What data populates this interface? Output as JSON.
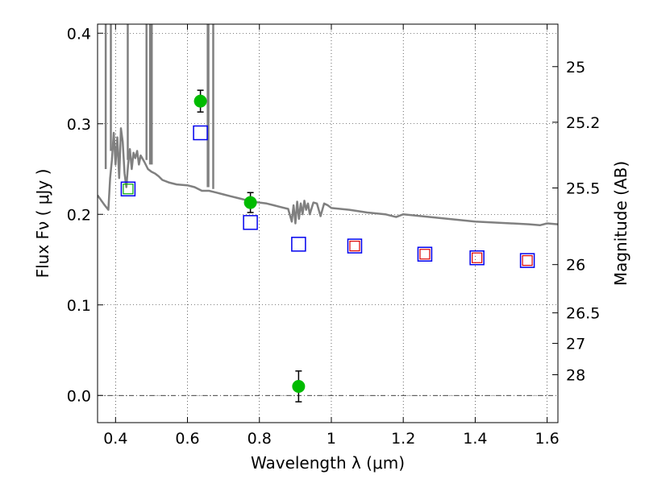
{
  "chart_data": {
    "type": "scatter",
    "xlabel": "Wavelength  λ (μm)",
    "ylabel": "Flux  Fν  ( μJy )",
    "ylabel_right": "Magnitude (AB)",
    "xlim": [
      0.35,
      1.63
    ],
    "ylim": [
      -0.03,
      0.41
    ],
    "grid": true,
    "x_ticks": [
      {
        "value": 0.4,
        "label": "0.4"
      },
      {
        "value": 0.6,
        "label": "0.6"
      },
      {
        "value": 0.8,
        "label": "0.8"
      },
      {
        "value": 1.0,
        "label": "1"
      },
      {
        "value": 1.2,
        "label": "1.2"
      },
      {
        "value": 1.4,
        "label": "1.4"
      },
      {
        "value": 1.6,
        "label": "1.6"
      }
    ],
    "y_ticks": [
      {
        "value": 0.0,
        "label": "0.0"
      },
      {
        "value": 0.1,
        "label": "0.1"
      },
      {
        "value": 0.2,
        "label": "0.2"
      },
      {
        "value": 0.3,
        "label": "0.3"
      },
      {
        "value": 0.4,
        "label": "0.4"
      }
    ],
    "right_ticks": [
      {
        "flux": 0.3631,
        "label": "25"
      },
      {
        "flux": 0.3017,
        "label": "25.2"
      },
      {
        "flux": 0.2291,
        "label": "25.5"
      },
      {
        "flux": 0.1445,
        "label": "26"
      },
      {
        "flux": 0.0912,
        "label": "26.5"
      },
      {
        "flux": 0.0575,
        "label": "27"
      },
      {
        "flux": 0.0229,
        "label": "28"
      }
    ],
    "series": [
      {
        "kind": "errorbar-points",
        "color": "#00bb00",
        "points": [
          {
            "x": 0.636,
            "y": 0.325,
            "err": 0.012
          },
          {
            "x": 0.775,
            "y": 0.213,
            "err": 0.011
          },
          {
            "x": 0.909,
            "y": 0.01,
            "err": 0.017
          }
        ]
      },
      {
        "kind": "open-squares",
        "color": "#0000ee",
        "points": [
          {
            "x": 0.435,
            "y": 0.228
          },
          {
            "x": 0.636,
            "y": 0.29
          },
          {
            "x": 0.775,
            "y": 0.191
          },
          {
            "x": 0.909,
            "y": 0.167
          },
          {
            "x": 1.065,
            "y": 0.165
          },
          {
            "x": 1.26,
            "y": 0.156
          },
          {
            "x": 1.405,
            "y": 0.152
          },
          {
            "x": 1.545,
            "y": 0.149
          }
        ]
      },
      {
        "kind": "open-squares-small",
        "color": "#dd0000",
        "points": [
          {
            "x": 1.065,
            "y": 0.165
          },
          {
            "x": 1.26,
            "y": 0.156
          },
          {
            "x": 1.405,
            "y": 0.152
          },
          {
            "x": 1.545,
            "y": 0.149
          }
        ]
      },
      {
        "kind": "open-squares-small",
        "color": "#00aa00",
        "points": [
          {
            "x": 0.435,
            "y": 0.228
          }
        ]
      },
      {
        "kind": "spectrum",
        "color": "#808080",
        "x": [
          0.35,
          0.37,
          0.38,
          0.385,
          0.39,
          0.395,
          0.4,
          0.405,
          0.41,
          0.415,
          0.42,
          0.425,
          0.43,
          0.435,
          0.44,
          0.445,
          0.45,
          0.455,
          0.46,
          0.465,
          0.47,
          0.48,
          0.49,
          0.5,
          0.51,
          0.52,
          0.53,
          0.55,
          0.57,
          0.6,
          0.62,
          0.64,
          0.66,
          0.68,
          0.7,
          0.72,
          0.74,
          0.76,
          0.78,
          0.8,
          0.82,
          0.84,
          0.86,
          0.88,
          0.89,
          0.895,
          0.9,
          0.905,
          0.91,
          0.915,
          0.92,
          0.925,
          0.93,
          0.935,
          0.94,
          0.95,
          0.96,
          0.97,
          0.98,
          0.99,
          1.0,
          1.05,
          1.1,
          1.15,
          1.18,
          1.2,
          1.25,
          1.3,
          1.35,
          1.4,
          1.45,
          1.5,
          1.55,
          1.58,
          1.6,
          1.63
        ],
        "y": [
          0.221,
          0.21,
          0.205,
          0.24,
          0.26,
          0.29,
          0.255,
          0.285,
          0.24,
          0.295,
          0.28,
          0.245,
          0.23,
          0.255,
          0.272,
          0.25,
          0.268,
          0.262,
          0.27,
          0.255,
          0.265,
          0.258,
          0.25,
          0.247,
          0.245,
          0.242,
          0.238,
          0.235,
          0.233,
          0.232,
          0.23,
          0.226,
          0.226,
          0.224,
          0.222,
          0.22,
          0.218,
          0.216,
          0.214,
          0.213,
          0.212,
          0.21,
          0.208,
          0.206,
          0.192,
          0.21,
          0.19,
          0.214,
          0.195,
          0.212,
          0.2,
          0.215,
          0.205,
          0.212,
          0.2,
          0.213,
          0.212,
          0.198,
          0.212,
          0.21,
          0.207,
          0.205,
          0.202,
          0.2,
          0.197,
          0.2,
          0.198,
          0.196,
          0.194,
          0.192,
          0.191,
          0.19,
          0.189,
          0.188,
          0.19,
          0.189
        ]
      },
      {
        "kind": "emission-lines",
        "color": "#808080",
        "lines": [
          {
            "x": 0.3727,
            "y0": 0.25,
            "y1": 0.41
          },
          {
            "x": 0.387,
            "y0": 0.27,
            "y1": 0.41
          },
          {
            "x": 0.434,
            "y0": 0.26,
            "y1": 0.41
          },
          {
            "x": 0.4861,
            "y0": 0.26,
            "y1": 0.41
          },
          {
            "x": 0.4959,
            "y0": 0.255,
            "y1": 0.41
          },
          {
            "x": 0.5007,
            "y0": 0.255,
            "y1": 0.41
          },
          {
            "x": 0.6563,
            "y0": 0.23,
            "y1": 0.41
          },
          {
            "x": 0.6583,
            "y0": 0.23,
            "y1": 0.41
          },
          {
            "x": 0.6716,
            "y0": 0.228,
            "y1": 0.41
          }
        ]
      }
    ]
  }
}
